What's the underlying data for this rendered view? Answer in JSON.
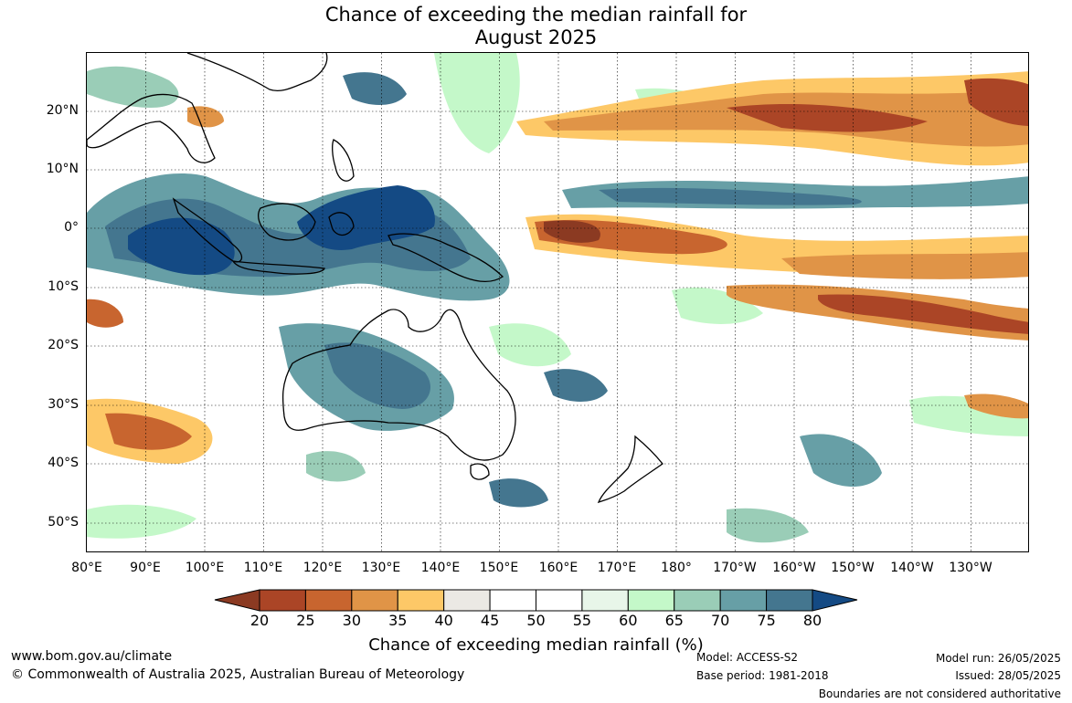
{
  "title": {
    "line1": "Chance of exceeding the median rainfall for",
    "line2": "August 2025"
  },
  "map": {
    "lat_labels": [
      "20°N",
      "10°N",
      "0°",
      "10°S",
      "20°S",
      "30°S",
      "40°S",
      "50°S"
    ],
    "lon_labels": [
      "80°E",
      "90°E",
      "100°E",
      "110°E",
      "120°E",
      "130°E",
      "140°E",
      "150°E",
      "160°E",
      "170°E",
      "180°",
      "170°W",
      "160°W",
      "150°W",
      "140°W",
      "130°W"
    ],
    "regions": [
      {
        "name": "eastern-indian-ocean-wet",
        "value": 80
      },
      {
        "name": "maritime-continent-wet",
        "value": 80
      },
      {
        "name": "inland-australia-wet",
        "value": 75
      },
      {
        "name": "equatorial-pacific-dry-band",
        "value": 20
      },
      {
        "name": "north-pacific-dry-band",
        "value": 20
      },
      {
        "name": "south-pacific-dry-band",
        "value": 25
      },
      {
        "name": "southern-indian-ocean-dry",
        "value": 30
      },
      {
        "name": "north-pacific-wet-band",
        "value": 75
      }
    ]
  },
  "colorbar": {
    "ticks": [
      "20",
      "25",
      "30",
      "35",
      "40",
      "45",
      "50",
      "55",
      "60",
      "65",
      "70",
      "75",
      "80"
    ],
    "colors": [
      "#ab4526",
      "#c8652f",
      "#e09447",
      "#fdc867",
      "#ebe9e4",
      "#ffffff",
      "#ffffff",
      "#e8f6e9",
      "#c4f8c9",
      "#9acdb7",
      "#679fa6",
      "#44768f"
    ],
    "under_color": "#8b3a22",
    "over_color": "#144a84",
    "label": "Chance of exceeding median rainfall (%)"
  },
  "footer": {
    "website": "www.bom.gov.au/climate",
    "copyright": "© Commonwealth of Australia 2025, Australian Bureau of Meteorology",
    "model": "Model: ACCESS-S2",
    "base_period": "Base period: 1981-2018",
    "model_run": "Model run: 26/05/2025",
    "issued": "Issued: 28/05/2025",
    "disclaimer": "Boundaries are not considered authoritative"
  }
}
